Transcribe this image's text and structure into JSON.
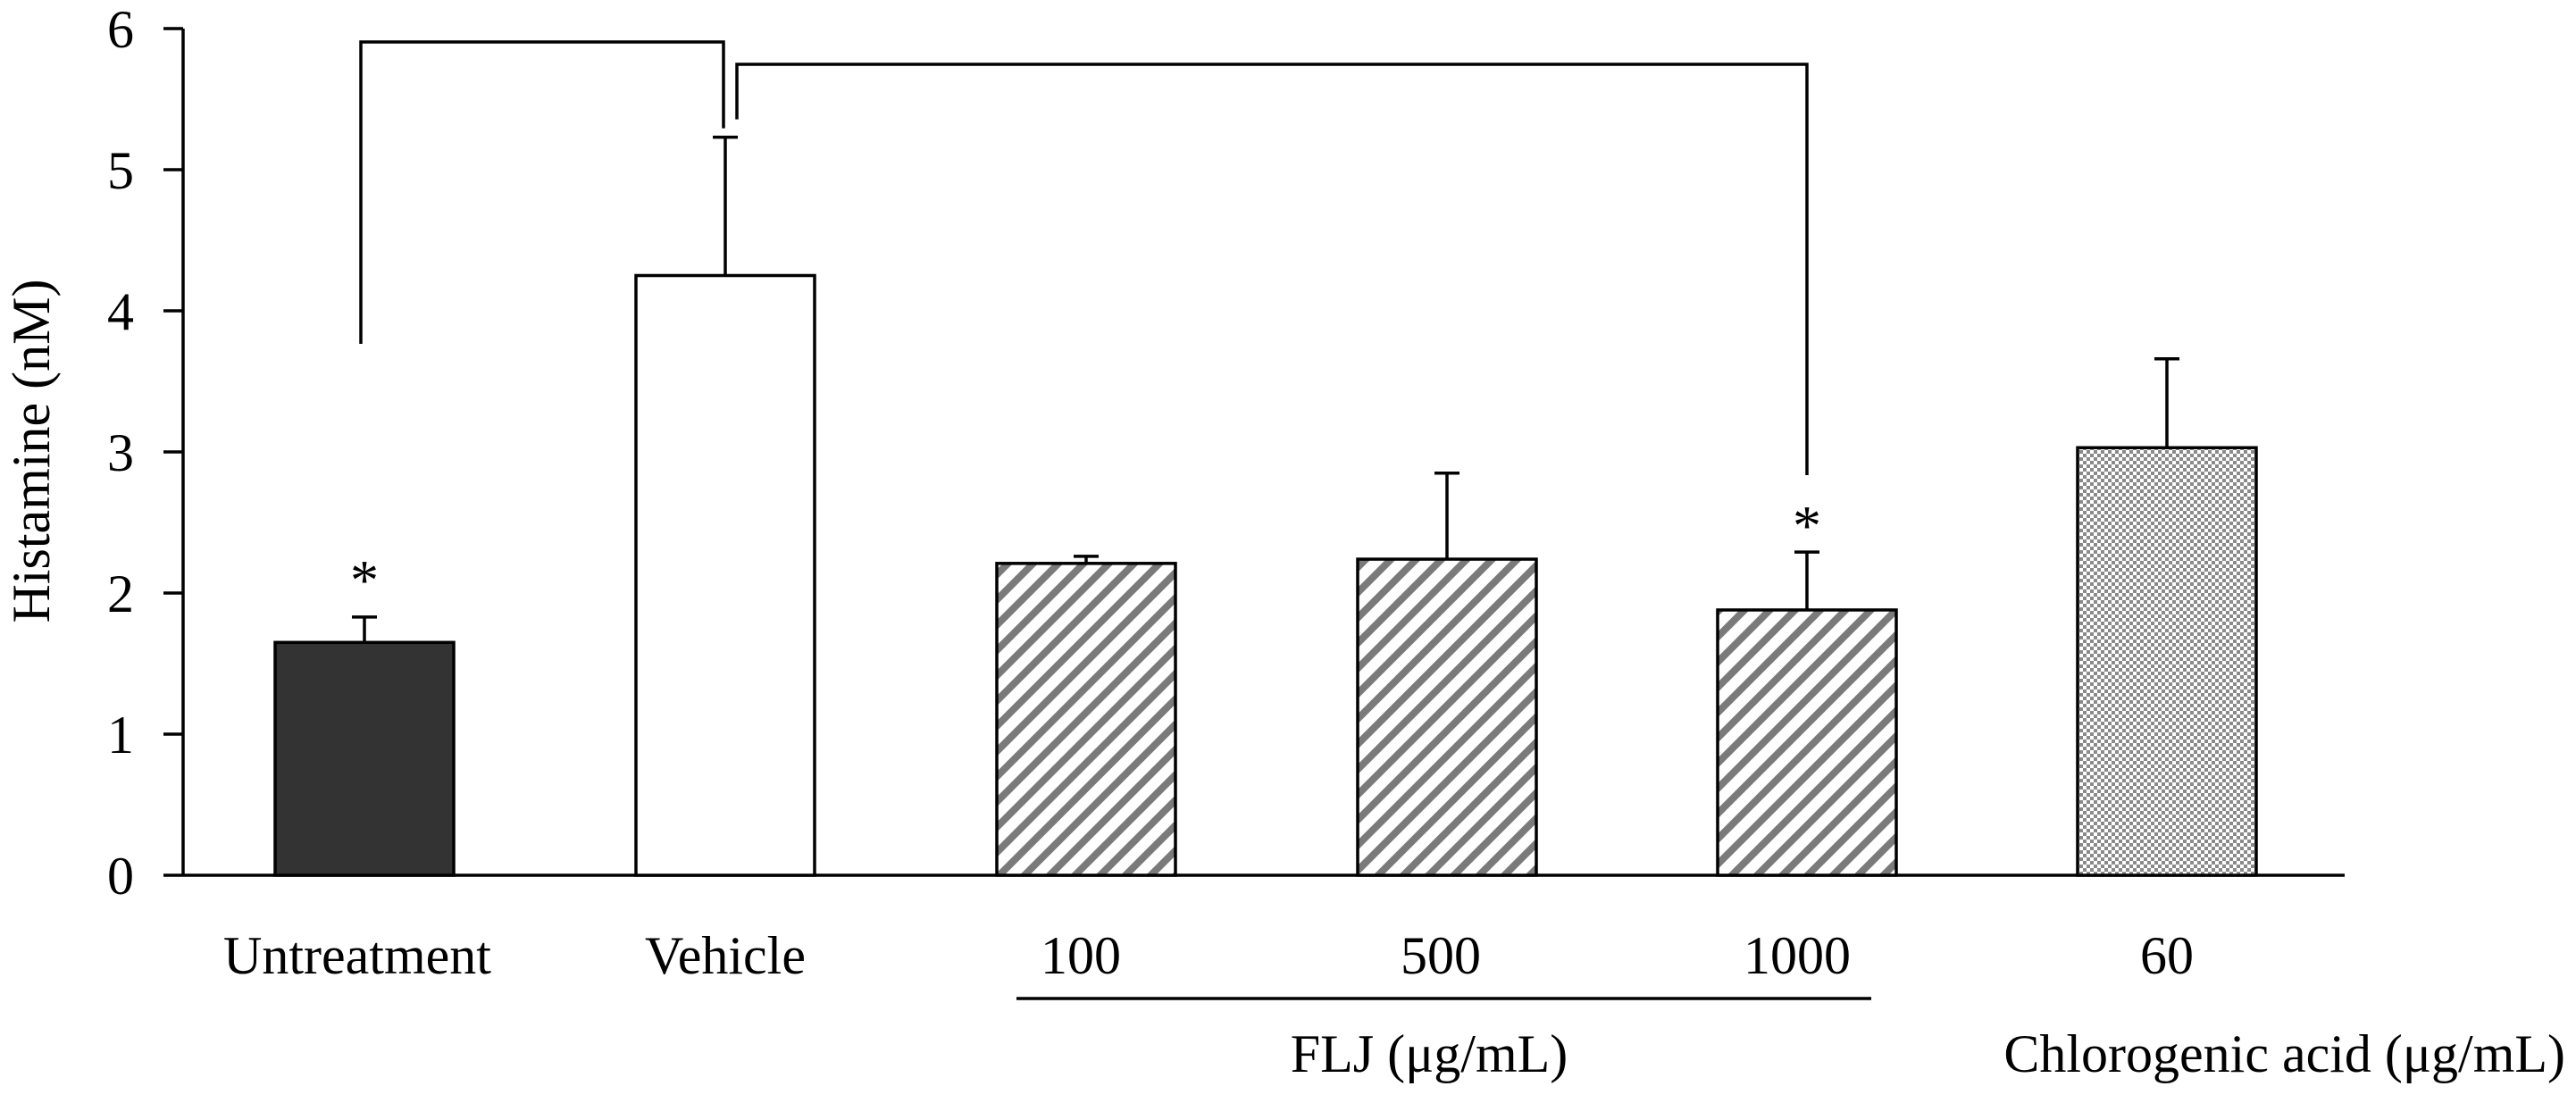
{
  "chart_data": {
    "type": "bar",
    "ylabel": "Histamine (nM)",
    "ylim": [
      0,
      6
    ],
    "yticks": [
      0,
      1,
      2,
      3,
      4,
      5,
      6
    ],
    "categories": [
      "Untreatment",
      "Vehicle",
      "100",
      "500",
      "1000",
      "60"
    ],
    "values": [
      1.65,
      4.25,
      2.21,
      2.24,
      1.88,
      3.03
    ],
    "errors": [
      0.18,
      0.98,
      0.05,
      0.61,
      0.41,
      0.63
    ],
    "fills": [
      "solid-dark",
      "white",
      "hatch",
      "hatch",
      "hatch",
      "checker"
    ],
    "significance": [
      "*",
      "",
      "",
      "",
      "*",
      ""
    ],
    "comparisons": [
      {
        "from": "Untreatment",
        "to": "Vehicle"
      },
      {
        "from": "Vehicle",
        "to": "1000"
      }
    ],
    "groups": [
      {
        "label": "FLJ (μg/mL)",
        "categories": [
          "100",
          "500",
          "1000"
        ],
        "underline": true
      },
      {
        "label": "Chlorogenic acid (μg/mL)",
        "categories": [
          "60"
        ],
        "underline": false
      }
    ]
  },
  "colors": {
    "dark_bar": "#333333",
    "hatch_stroke": "#7a7a7a",
    "checker_dark": "#8a8a8a",
    "checker_light": "#ffffff"
  }
}
